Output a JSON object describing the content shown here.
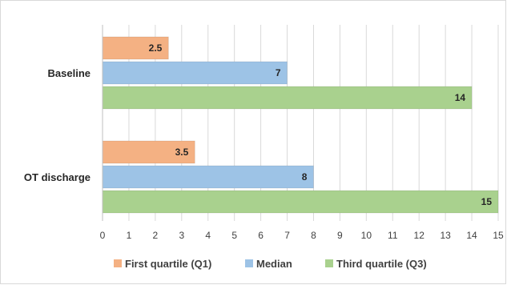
{
  "chart_data": {
    "type": "bar",
    "orientation": "horizontal",
    "title": "",
    "xlabel": "",
    "ylabel": "",
    "categories": [
      "Baseline",
      "OT discharge"
    ],
    "series": [
      {
        "name": "First quartile (Q1)",
        "values": [
          2.5,
          3.5
        ],
        "color": "#f4b183"
      },
      {
        "name": "Median",
        "values": [
          7,
          8
        ],
        "color": "#9dc3e6"
      },
      {
        "name": "Third quartile (Q3)",
        "values": [
          14,
          15
        ],
        "color": "#a9d18e"
      }
    ],
    "xlim": [
      0,
      15
    ],
    "xticks": [
      "0",
      "1",
      "2",
      "3",
      "4",
      "5",
      "6",
      "7",
      "8",
      "9",
      "10",
      "11",
      "12",
      "13",
      "14",
      "15"
    ],
    "grid": true,
    "legend_position": "bottom"
  }
}
